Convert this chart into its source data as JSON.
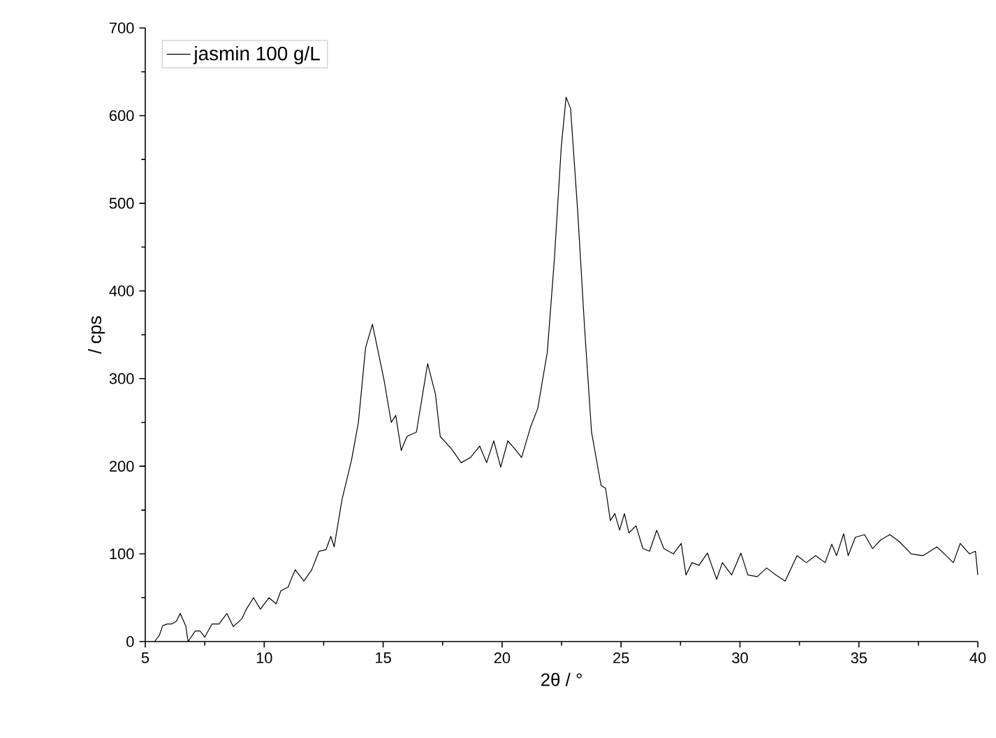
{
  "chart_data": {
    "type": "line",
    "xlabel": "2θ / °",
    "ylabel": "/ cps",
    "xlim": [
      5,
      40
    ],
    "ylim": [
      0,
      700
    ],
    "xticks": [
      5,
      10,
      15,
      20,
      25,
      30,
      35,
      40
    ],
    "yticks": [
      0,
      100,
      200,
      300,
      400,
      500,
      600,
      700
    ],
    "legend": "top left",
    "grid": false,
    "marker": "none",
    "line_style": "solid",
    "series": [
      {
        "name": "jasmin 100 g/L",
        "color": "#000000",
        "x": [
          5.39,
          5.59,
          5.73,
          5.92,
          6.1,
          6.3,
          6.47,
          6.7,
          6.8,
          7.1,
          7.3,
          7.5,
          7.8,
          8.1,
          8.43,
          8.7,
          9.06,
          9.25,
          9.55,
          9.84,
          10.2,
          10.5,
          10.7,
          11.0,
          11.3,
          11.67,
          12.0,
          12.3,
          12.6,
          12.8,
          12.94,
          13.27,
          13.67,
          13.96,
          14.26,
          14.55,
          15.04,
          15.34,
          15.53,
          15.76,
          16.0,
          16.4,
          16.87,
          17.2,
          17.4,
          17.87,
          18.28,
          18.67,
          19.06,
          19.35,
          19.65,
          19.94,
          20.24,
          20.53,
          20.82,
          21.2,
          21.5,
          21.9,
          22.2,
          22.49,
          22.69,
          22.88,
          23.18,
          23.47,
          23.76,
          24.16,
          24.35,
          24.55,
          24.74,
          24.94,
          25.14,
          25.33,
          25.63,
          25.92,
          26.2,
          26.5,
          26.8,
          27.2,
          27.53,
          27.73,
          27.98,
          28.28,
          28.63,
          29.02,
          29.26,
          29.65,
          30.04,
          30.33,
          30.73,
          31.12,
          31.51,
          31.9,
          32.4,
          32.79,
          33.18,
          33.58,
          33.86,
          34.06,
          34.36,
          34.55,
          34.85,
          35.24,
          35.57,
          35.92,
          36.3,
          36.7,
          37.2,
          37.7,
          38.28,
          38.67,
          38.97,
          39.26,
          39.65,
          39.9,
          40.0
        ],
        "values": [
          0,
          7,
          18,
          20,
          20,
          23,
          32,
          18,
          0,
          12,
          12,
          5,
          20,
          20,
          32,
          17,
          26,
          37,
          50,
          37,
          50,
          43,
          58,
          62,
          82,
          69,
          82,
          103,
          105,
          120,
          108,
          162,
          207,
          250,
          335,
          362,
          298,
          250,
          258,
          218,
          234,
          239,
          317,
          282,
          234,
          220,
          204,
          210,
          223,
          204,
          229,
          199,
          229,
          220,
          210,
          245,
          266,
          330,
          437,
          565,
          621,
          608,
          490,
          357,
          239,
          178,
          175,
          138,
          146,
          127,
          146,
          124,
          132,
          106,
          103,
          127,
          106,
          100,
          112,
          76,
          90,
          87,
          101,
          71,
          90,
          76,
          101,
          76,
          74,
          84,
          76,
          69,
          98,
          90,
          98,
          90,
          111,
          98,
          123,
          98,
          119,
          122,
          106,
          116,
          122,
          114,
          100,
          98,
          108,
          98,
          90,
          112,
          100,
          103,
          76
        ]
      }
    ]
  }
}
